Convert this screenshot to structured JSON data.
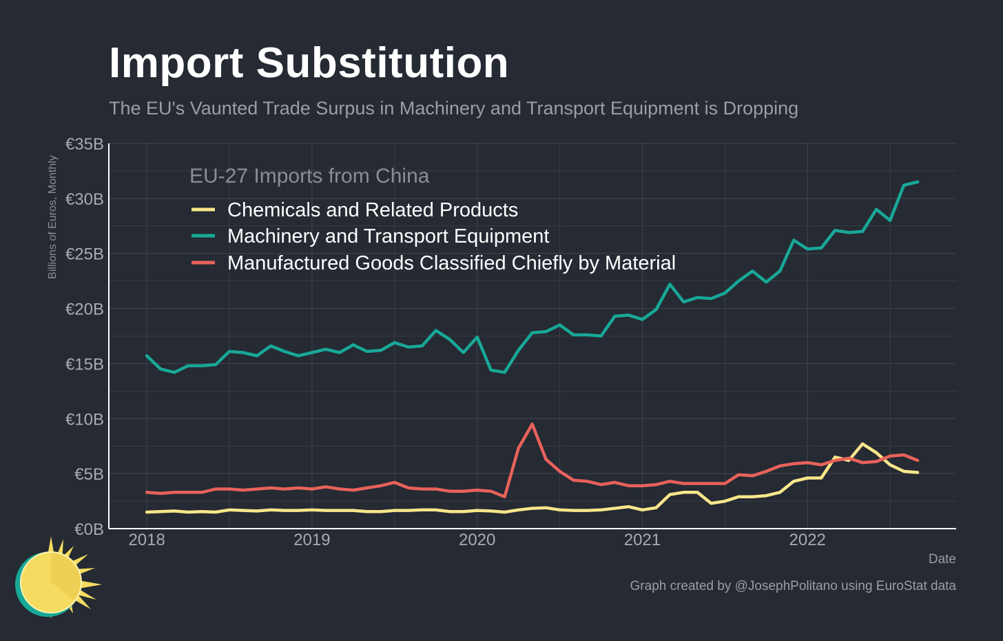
{
  "header": {
    "title": "Import Substitution",
    "subtitle": "The EU's Vaunted Trade Surpus in Machinery and Transport Equipment is Dropping"
  },
  "footer": {
    "credit": "Graph created by @JosephPolitano using EuroStat data"
  },
  "colors": {
    "background": "#252a33",
    "grid": "#3d424b",
    "axis": "#ffffff",
    "chemicals": "#f9e68a",
    "machinery": "#18a898",
    "manufactured": "#e8625a"
  },
  "chart_data": {
    "type": "line",
    "ylabel": "Billions of Euros, Monthly",
    "xlabel": "Date",
    "legend": {
      "title": "EU-27 Imports from China",
      "placement": "top-left"
    },
    "ylim": [
      0,
      35
    ],
    "xlim": [
      2017.77,
      2022.9
    ],
    "y_ticks": [
      {
        "value": 0,
        "label": "€0B"
      },
      {
        "value": 5,
        "label": "€5B"
      },
      {
        "value": 10,
        "label": "€10B"
      },
      {
        "value": 15,
        "label": "€15B"
      },
      {
        "value": 20,
        "label": "€20B"
      },
      {
        "value": 25,
        "label": "€25B"
      },
      {
        "value": 30,
        "label": "€30B"
      },
      {
        "value": 35,
        "label": "€35B"
      }
    ],
    "x_ticks": [
      {
        "value": 2018,
        "label": "2018"
      },
      {
        "value": 2019,
        "label": "2019"
      },
      {
        "value": 2020,
        "label": "2020"
      },
      {
        "value": 2021,
        "label": "2021"
      },
      {
        "value": 2022,
        "label": "2022"
      }
    ],
    "grid": true,
    "x_start": "2018-01",
    "x_step": "1 month",
    "series": [
      {
        "name": "Chemicals and Related Products",
        "color": "#f9e68a",
        "values": [
          1.5,
          1.55,
          1.6,
          1.5,
          1.55,
          1.5,
          1.7,
          1.65,
          1.6,
          1.7,
          1.65,
          1.65,
          1.7,
          1.65,
          1.65,
          1.65,
          1.55,
          1.55,
          1.65,
          1.65,
          1.7,
          1.7,
          1.55,
          1.55,
          1.65,
          1.6,
          1.5,
          1.7,
          1.85,
          1.9,
          1.7,
          1.65,
          1.65,
          1.7,
          1.85,
          2.0,
          1.7,
          1.9,
          3.1,
          3.3,
          3.3,
          2.3,
          2.5,
          2.9,
          2.9,
          3.0,
          3.3,
          4.3,
          4.6,
          4.6,
          6.5,
          6.2,
          7.7,
          6.9,
          5.8,
          5.2,
          5.1
        ]
      },
      {
        "name": "Machinery and Transport Equipment",
        "color": "#18a898",
        "values": [
          15.7,
          14.5,
          14.2,
          14.8,
          14.8,
          14.9,
          16.1,
          16.0,
          15.7,
          16.6,
          16.1,
          15.7,
          16.0,
          16.3,
          16.0,
          16.7,
          16.1,
          16.2,
          16.9,
          16.5,
          16.6,
          18.0,
          17.2,
          16.0,
          17.4,
          14.4,
          14.2,
          16.2,
          17.8,
          17.9,
          18.5,
          17.6,
          17.6,
          17.5,
          19.3,
          19.4,
          19.0,
          19.9,
          22.2,
          20.6,
          21.0,
          20.9,
          21.4,
          22.5,
          23.4,
          22.4,
          23.4,
          26.2,
          25.4,
          25.5,
          27.1,
          26.9,
          27.0,
          29.0,
          28.0,
          31.2,
          31.5
        ]
      },
      {
        "name": "Manufactured Goods Classified Chiefly by Material",
        "color": "#e8625a",
        "values": [
          3.3,
          3.2,
          3.3,
          3.3,
          3.3,
          3.6,
          3.6,
          3.5,
          3.6,
          3.7,
          3.6,
          3.7,
          3.6,
          3.8,
          3.6,
          3.5,
          3.7,
          3.9,
          4.2,
          3.7,
          3.6,
          3.6,
          3.4,
          3.4,
          3.5,
          3.4,
          2.9,
          7.3,
          9.5,
          6.3,
          5.2,
          4.4,
          4.3,
          4.0,
          4.2,
          3.9,
          3.9,
          4.0,
          4.3,
          4.1,
          4.1,
          4.1,
          4.1,
          4.9,
          4.8,
          5.2,
          5.7,
          5.9,
          6.0,
          5.8,
          6.2,
          6.4,
          6.0,
          6.1,
          6.6,
          6.7,
          6.2
        ]
      }
    ]
  }
}
